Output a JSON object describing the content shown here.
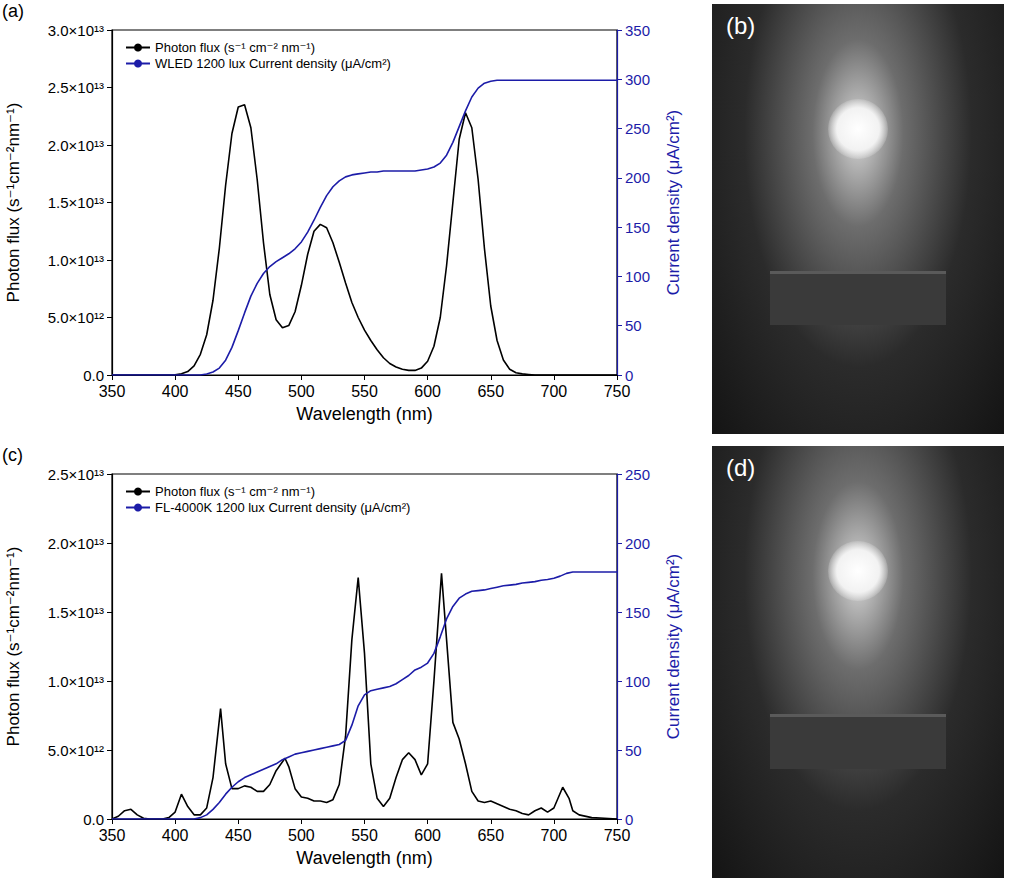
{
  "chart_data": [
    {
      "type": "line",
      "panel": "(a)",
      "x_label": "Wavelength (nm)",
      "y_label": "Photon flux (s⁻¹cm⁻²nm⁻¹)",
      "y2_label": "Current density (μA/cm²)",
      "xlim": [
        350,
        750
      ],
      "xticks": [
        350,
        400,
        450,
        500,
        550,
        600,
        650,
        700,
        750
      ],
      "ylim": [
        0,
        30000000000000.0
      ],
      "yticks": [
        {
          "value": 0,
          "label": "0.0"
        },
        {
          "value": 5000000000000.0,
          "label": "5.0×10¹²"
        },
        {
          "value": 10000000000000.0,
          "label": "1.0×10¹³"
        },
        {
          "value": 15000000000000.0,
          "label": "1.5×10¹³"
        },
        {
          "value": 20000000000000.0,
          "label": "2.0×10¹³"
        },
        {
          "value": 25000000000000.0,
          "label": "2.5×10¹³"
        },
        {
          "value": 30000000000000.0,
          "label": "3.0×10¹³"
        }
      ],
      "y2lim": [
        0,
        350
      ],
      "y2ticks": [
        0,
        50,
        100,
        150,
        200,
        250,
        300,
        350
      ],
      "grid": false,
      "legend": "upper left",
      "x": [
        350,
        355,
        360,
        365,
        370,
        375,
        380,
        385,
        390,
        395,
        400,
        405,
        410,
        415,
        420,
        425,
        430,
        435,
        440,
        445,
        450,
        455,
        460,
        465,
        470,
        475,
        480,
        485,
        490,
        495,
        500,
        505,
        510,
        515,
        520,
        525,
        530,
        535,
        540,
        545,
        550,
        555,
        560,
        565,
        570,
        575,
        580,
        585,
        590,
        595,
        600,
        605,
        610,
        615,
        620,
        625,
        630,
        635,
        640,
        645,
        650,
        655,
        660,
        665,
        670,
        675,
        680,
        685,
        690,
        695,
        700,
        705,
        710,
        715,
        720,
        725,
        730,
        735,
        740,
        745,
        750
      ],
      "series": [
        {
          "name": "Photon flux (s⁻¹ cm⁻² nm⁻¹)",
          "color": "#000000",
          "values": [
            0,
            0,
            0,
            0,
            0,
            0,
            0,
            0,
            0,
            0,
            20000000000.0,
            100000000000.0,
            300000000000.0,
            800000000000.0,
            1800000000000.0,
            3500000000000.0,
            6500000000000.0,
            11000000000000.0,
            16500000000000.0,
            21000000000000.0,
            23300000000000.0,
            23500000000000.0,
            21500000000000.0,
            17000000000000.0,
            11500000000000.0,
            7000000000000.0,
            4800000000000.0,
            4100000000000.0,
            4300000000000.0,
            5500000000000.0,
            7800000000000.0,
            10500000000000.0,
            12500000000000.0,
            13100000000000.0,
            12800000000000.0,
            11500000000000.0,
            9800000000000.0,
            8000000000000.0,
            6300000000000.0,
            5000000000000.0,
            3900000000000.0,
            3000000000000.0,
            2200000000000.0,
            1500000000000.0,
            1000000000000.0,
            700000000000.0,
            500000000000.0,
            400000000000.0,
            400000000000.0,
            600000000000.0,
            1200000000000.0,
            2500000000000.0,
            5000000000000.0,
            9500000000000.0,
            15000000000000.0,
            20500000000000.0,
            22800000000000.0,
            21500000000000.0,
            17000000000000.0,
            11000000000000.0,
            6000000000000.0,
            3000000000000.0,
            1300000000000.0,
            500000000000.0,
            200000000000.0,
            100000000000.0,
            50000000000.0,
            0,
            0,
            0,
            0,
            0,
            0,
            0,
            0,
            0,
            0,
            0,
            0,
            0,
            0
          ]
        },
        {
          "name": "WLED 1200 lux Current density (μA/cm²)",
          "color": "#1c1ca8",
          "axis": "y2",
          "values": [
            0,
            0,
            0,
            0,
            0,
            0,
            0,
            0,
            0,
            0,
            0,
            0,
            0,
            0,
            0,
            1,
            3,
            7,
            15,
            28,
            45,
            63,
            80,
            93,
            103,
            110,
            115,
            119,
            123,
            128,
            135,
            145,
            157,
            170,
            182,
            191,
            197,
            201,
            203,
            204,
            205,
            206,
            206,
            207,
            207,
            207,
            207,
            207,
            207,
            208,
            209,
            211,
            215,
            223,
            236,
            252,
            268,
            282,
            291,
            296,
            298,
            299,
            299,
            299,
            299,
            299,
            299,
            299,
            299,
            299,
            299,
            299,
            299,
            299,
            299,
            299,
            299,
            299,
            299,
            299,
            299
          ]
        }
      ]
    },
    {
      "type": "line",
      "panel": "(c)",
      "x_label": "Wavelength (nm)",
      "y_label": "Photon flux (s⁻¹cm⁻²nm⁻¹)",
      "y2_label": "Current density (μA/cm²)",
      "xlim": [
        350,
        750
      ],
      "xticks": [
        350,
        400,
        450,
        500,
        550,
        600,
        650,
        700,
        750
      ],
      "ylim": [
        0,
        25000000000000.0
      ],
      "yticks": [
        {
          "value": 0,
          "label": "0.0"
        },
        {
          "value": 5000000000000.0,
          "label": "5.0×10¹²"
        },
        {
          "value": 10000000000000.0,
          "label": "1.0×10¹³"
        },
        {
          "value": 15000000000000.0,
          "label": "1.5×10¹³"
        },
        {
          "value": 20000000000000.0,
          "label": "2.0×10¹³"
        },
        {
          "value": 25000000000000.0,
          "label": "2.5×10¹³"
        }
      ],
      "y2lim": [
        0,
        250
      ],
      "y2ticks": [
        0,
        50,
        100,
        150,
        200,
        250
      ],
      "grid": false,
      "legend": "upper left",
      "series": [
        {
          "name": "Photon flux (s⁻¹ cm⁻² nm⁻¹)",
          "color": "#000000",
          "x": [
            350,
            355,
            360,
            365,
            370,
            375,
            380,
            385,
            390,
            395,
            400,
            405,
            410,
            415,
            420,
            425,
            430,
            436,
            440,
            445,
            450,
            455,
            460,
            465,
            470,
            475,
            480,
            487,
            490,
            495,
            500,
            505,
            510,
            515,
            520,
            525,
            530,
            535,
            540,
            545,
            550,
            555,
            560,
            565,
            570,
            575,
            580,
            585,
            590,
            595,
            600,
            605,
            611,
            615,
            620,
            625,
            630,
            635,
            640,
            645,
            650,
            655,
            660,
            665,
            670,
            675,
            680,
            685,
            690,
            695,
            700,
            707,
            712,
            715,
            720,
            730,
            740,
            750
          ],
          "values": [
            0,
            200000000000.0,
            600000000000.0,
            700000000000.0,
            300000000000.0,
            50000000000.0,
            0,
            0,
            0,
            100000000000.0,
            500000000000.0,
            1800000000000.0,
            900000000000.0,
            300000000000.0,
            300000000000.0,
            800000000000.0,
            3000000000000.0,
            8000000000000.0,
            4000000000000.0,
            2200000000000.0,
            2200000000000.0,
            2400000000000.0,
            2300000000000.0,
            2000000000000.0,
            2000000000000.0,
            2500000000000.0,
            3500000000000.0,
            4400000000000.0,
            3800000000000.0,
            2200000000000.0,
            1600000000000.0,
            1500000000000.0,
            1300000000000.0,
            1300000000000.0,
            1200000000000.0,
            1400000000000.0,
            2500000000000.0,
            6000000000000.0,
            13000000000000.0,
            17500000000000.0,
            12000000000000.0,
            4000000000000.0,
            1500000000000.0,
            900000000000.0,
            1500000000000.0,
            3000000000000.0,
            4300000000000.0,
            4800000000000.0,
            4300000000000.0,
            3200000000000.0,
            4000000000000.0,
            10000000000000.0,
            17800000000000.0,
            13000000000000.0,
            7000000000000.0,
            5800000000000.0,
            4000000000000.0,
            2000000000000.0,
            1300000000000.0,
            1200000000000.0,
            1300000000000.0,
            1100000000000.0,
            900000000000.0,
            700000000000.0,
            600000000000.0,
            400000000000.0,
            300000000000.0,
            600000000000.0,
            800000000000.0,
            500000000000.0,
            800000000000.0,
            2300000000000.0,
            1500000000000.0,
            600000000000.0,
            300000000000.0,
            100000000000.0,
            50000000000.0,
            0
          ]
        },
        {
          "name": "FL-4000K 1200 lux Current density (μA/cm²)",
          "color": "#1c1ca8",
          "axis": "y2",
          "x": [
            350,
            355,
            360,
            365,
            370,
            375,
            380,
            385,
            390,
            395,
            400,
            405,
            410,
            415,
            420,
            425,
            430,
            435,
            440,
            445,
            450,
            455,
            460,
            465,
            470,
            475,
            480,
            485,
            490,
            495,
            500,
            505,
            510,
            515,
            520,
            525,
            530,
            535,
            540,
            545,
            550,
            555,
            560,
            565,
            570,
            575,
            580,
            585,
            590,
            595,
            600,
            605,
            610,
            615,
            620,
            625,
            630,
            635,
            640,
            645,
            650,
            655,
            660,
            665,
            670,
            675,
            680,
            685,
            690,
            695,
            700,
            705,
            710,
            715,
            720,
            725,
            730,
            735,
            740,
            745,
            750
          ],
          "values": [
            0,
            0,
            0,
            0,
            0,
            0,
            0,
            0,
            0,
            0,
            0,
            0,
            0,
            0,
            1,
            3,
            7,
            12,
            18,
            23,
            27,
            30,
            32,
            34,
            36,
            38,
            40,
            43,
            45,
            47,
            48,
            49,
            50,
            51,
            52,
            53,
            54,
            57,
            68,
            82,
            90,
            93,
            94,
            95,
            96,
            98,
            101,
            104,
            108,
            110,
            113,
            120,
            132,
            145,
            154,
            160,
            163,
            165,
            165.5,
            166,
            167,
            168,
            169,
            169.5,
            170,
            171,
            171.5,
            172,
            173,
            173.5,
            174.5,
            176,
            178,
            179,
            179,
            179,
            179,
            179,
            179,
            179,
            179
          ]
        }
      ]
    }
  ],
  "photos": [
    {
      "panel": "(b)"
    },
    {
      "panel": "(d)"
    }
  ]
}
